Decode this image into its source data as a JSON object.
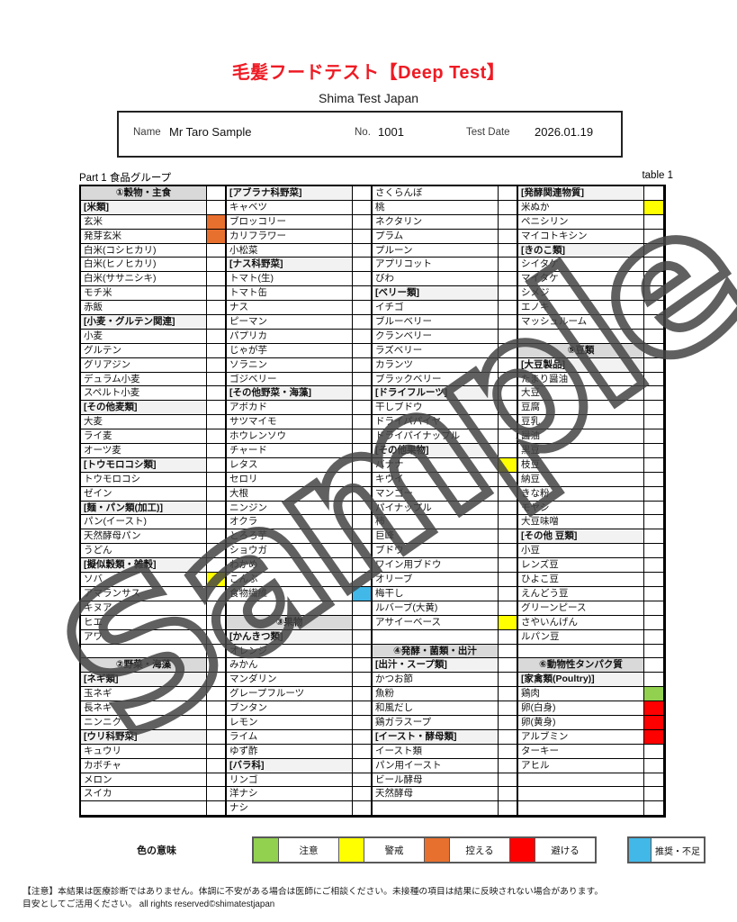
{
  "header": {
    "title": "毛髪フードテスト【Deep Test】",
    "subtitle": "Shima Test Japan"
  },
  "info": {
    "name_label": "Name",
    "name_value": "Mr  Taro Sample",
    "no_label": "No.",
    "no_value": "1001",
    "date_label": "Test Date",
    "date_value": "2026.01.19"
  },
  "table_meta": {
    "part_label": "Part 1  食品グループ",
    "table_label": "table 1"
  },
  "watermark": "Sample",
  "table": {
    "columns": [
      [
        [
          "①穀物・主食",
          "sec",
          ""
        ],
        [
          "[米類]",
          "sub",
          ""
        ],
        [
          "玄米",
          "i",
          "orange"
        ],
        [
          "発芽玄米",
          "i",
          "orange"
        ],
        [
          "白米(コシヒカリ)",
          "i",
          ""
        ],
        [
          "白米(ヒノヒカリ)",
          "i",
          ""
        ],
        [
          "白米(ササニシキ)",
          "i",
          ""
        ],
        [
          "モチ米",
          "i",
          ""
        ],
        [
          "赤飯",
          "i",
          ""
        ],
        [
          "[小麦・グルテン関連]",
          "sub",
          ""
        ],
        [
          "小麦",
          "i",
          ""
        ],
        [
          "グルテン",
          "i",
          ""
        ],
        [
          "グリアジン",
          "i",
          ""
        ],
        [
          "デュラム小麦",
          "i",
          ""
        ],
        [
          "スペルト小麦",
          "i",
          ""
        ],
        [
          "[その他麦類]",
          "sub",
          ""
        ],
        [
          "大麦",
          "i",
          ""
        ],
        [
          "ライ麦",
          "i",
          ""
        ],
        [
          "オーツ麦",
          "i",
          ""
        ],
        [
          "[トウモロコシ類]",
          "sub",
          ""
        ],
        [
          "トウモロコシ",
          "i",
          ""
        ],
        [
          "ゼイン",
          "i",
          ""
        ],
        [
          "[麺・パン類(加工)]",
          "sub",
          ""
        ],
        [
          "パン(イースト)",
          "i",
          ""
        ],
        [
          "天然酵母パン",
          "i",
          ""
        ],
        [
          "うどん",
          "i",
          ""
        ],
        [
          "[擬似穀類・雑穀]",
          "sub",
          ""
        ],
        [
          "ソバ",
          "i",
          "yellow"
        ],
        [
          "アマランサス",
          "i",
          ""
        ],
        [
          "キヌア",
          "i",
          ""
        ],
        [
          "ヒエ",
          "i",
          ""
        ],
        [
          "アワ",
          "i",
          ""
        ],
        [
          "",
          "e",
          ""
        ],
        [
          "②野菜・海藻",
          "sec",
          ""
        ],
        [
          "[ネギ類]",
          "sub",
          ""
        ],
        [
          "玉ネギ",
          "i",
          ""
        ],
        [
          "長ネギ",
          "i",
          ""
        ],
        [
          "ニンニク",
          "i",
          ""
        ],
        [
          "[ウリ科野菜]",
          "sub",
          ""
        ],
        [
          "キュウリ",
          "i",
          ""
        ],
        [
          "カボチャ",
          "i",
          ""
        ],
        [
          "メロン",
          "i",
          ""
        ],
        [
          "スイカ",
          "i",
          ""
        ],
        [
          "",
          "e",
          ""
        ]
      ],
      [
        [
          "[アブラナ科野菜]",
          "sub",
          ""
        ],
        [
          "キャベツ",
          "i",
          ""
        ],
        [
          "ブロッコリー",
          "i",
          ""
        ],
        [
          "カリフラワー",
          "i",
          ""
        ],
        [
          "小松菜",
          "i",
          ""
        ],
        [
          "[ナス科野菜]",
          "sub",
          ""
        ],
        [
          "トマト(生)",
          "i",
          ""
        ],
        [
          "トマト缶",
          "i",
          ""
        ],
        [
          "ナス",
          "i",
          ""
        ],
        [
          "ピーマン",
          "i",
          ""
        ],
        [
          "パプリカ",
          "i",
          ""
        ],
        [
          "じゃが芋",
          "i",
          ""
        ],
        [
          "ソラニン",
          "i",
          ""
        ],
        [
          "ゴジベリー",
          "i",
          ""
        ],
        [
          "[その他野菜・海藻]",
          "sub",
          ""
        ],
        [
          "アボカド",
          "i",
          ""
        ],
        [
          "サツマイモ",
          "i",
          ""
        ],
        [
          "ホウレンソウ",
          "i",
          ""
        ],
        [
          "チャード",
          "i",
          ""
        ],
        [
          "レタス",
          "i",
          ""
        ],
        [
          "セロリ",
          "i",
          ""
        ],
        [
          "大根",
          "i",
          ""
        ],
        [
          "ニンジン",
          "i",
          ""
        ],
        [
          "オクラ",
          "i",
          ""
        ],
        [
          "とろろ芋",
          "i",
          ""
        ],
        [
          "ショウガ",
          "i",
          ""
        ],
        [
          "わかめ",
          "i",
          ""
        ],
        [
          "こんぶ",
          "i",
          ""
        ],
        [
          "食物繊維",
          "i",
          "blue"
        ],
        [
          "",
          "e",
          ""
        ],
        [
          "③果物",
          "sec",
          ""
        ],
        [
          "[かんきつ類]",
          "sub",
          ""
        ],
        [
          "オレンジ",
          "i",
          ""
        ],
        [
          "みかん",
          "i",
          ""
        ],
        [
          "マンダリン",
          "i",
          ""
        ],
        [
          "グレープフルーツ",
          "i",
          ""
        ],
        [
          "ブンタン",
          "i",
          ""
        ],
        [
          "レモン",
          "i",
          ""
        ],
        [
          "ライム",
          "i",
          ""
        ],
        [
          "ゆず酢",
          "i",
          ""
        ],
        [
          "[バラ科]",
          "sub",
          ""
        ],
        [
          "リンゴ",
          "i",
          ""
        ],
        [
          "洋ナシ",
          "i",
          ""
        ],
        [
          "ナシ",
          "i",
          ""
        ]
      ],
      [
        [
          "さくらんぼ",
          "i",
          ""
        ],
        [
          "桃",
          "i",
          ""
        ],
        [
          "ネクタリン",
          "i",
          ""
        ],
        [
          "プラム",
          "i",
          ""
        ],
        [
          "プルーン",
          "i",
          ""
        ],
        [
          "アプリコット",
          "i",
          ""
        ],
        [
          "びわ",
          "i",
          ""
        ],
        [
          "[ベリー類]",
          "sub",
          ""
        ],
        [
          "イチゴ",
          "i",
          ""
        ],
        [
          "ブルーベリー",
          "i",
          ""
        ],
        [
          "クランベリー",
          "i",
          ""
        ],
        [
          "ラズベリー",
          "i",
          ""
        ],
        [
          "カランツ",
          "i",
          ""
        ],
        [
          "ブラックベリー",
          "i",
          ""
        ],
        [
          "[ドライフルーツ]",
          "sub",
          ""
        ],
        [
          "干しブドウ",
          "i",
          ""
        ],
        [
          "ドライパパイヤ",
          "i",
          ""
        ],
        [
          "ドライパイナップル",
          "i",
          ""
        ],
        [
          "[その他果物]",
          "sub",
          ""
        ],
        [
          "バナナ",
          "i",
          "yellow"
        ],
        [
          "キウイ",
          "i",
          ""
        ],
        [
          "マンゴー",
          "i",
          ""
        ],
        [
          "パイナップル",
          "i",
          ""
        ],
        [
          "柿",
          "i",
          ""
        ],
        [
          "巨峰",
          "i",
          ""
        ],
        [
          "ブドウ",
          "i",
          ""
        ],
        [
          "ワイン用ブドウ",
          "i",
          ""
        ],
        [
          "オリーブ",
          "i",
          ""
        ],
        [
          "梅干し",
          "i",
          ""
        ],
        [
          "ルバーブ(大黄)",
          "i",
          ""
        ],
        [
          "アサイーベース",
          "i",
          "yellow"
        ],
        [
          "",
          "e",
          ""
        ],
        [
          "④発酵・菌類・出汁",
          "sec",
          ""
        ],
        [
          "[出汁・スープ類]",
          "sub",
          ""
        ],
        [
          "かつお節",
          "i",
          ""
        ],
        [
          "魚粉",
          "i",
          ""
        ],
        [
          "和風だし",
          "i",
          ""
        ],
        [
          "鶏ガラスープ",
          "i",
          ""
        ],
        [
          "[イースト・酵母類]",
          "sub",
          ""
        ],
        [
          "イースト類",
          "i",
          ""
        ],
        [
          "パン用イースト",
          "i",
          ""
        ],
        [
          "ビール酵母",
          "i",
          ""
        ],
        [
          "天然酵母",
          "i",
          ""
        ],
        [
          "",
          "e",
          ""
        ]
      ],
      [
        [
          "[発酵関連物質]",
          "sub",
          ""
        ],
        [
          "米ぬか",
          "i",
          "yellow"
        ],
        [
          "ペニシリン",
          "i",
          ""
        ],
        [
          "マイコトキシン",
          "i",
          ""
        ],
        [
          "[きのこ類]",
          "sub",
          ""
        ],
        [
          "シイタケ",
          "i",
          ""
        ],
        [
          "マイタケ",
          "i",
          ""
        ],
        [
          "シメジ",
          "i",
          ""
        ],
        [
          "エノキ",
          "i",
          ""
        ],
        [
          "マッシュルーム",
          "i",
          ""
        ],
        [
          "",
          "e",
          ""
        ],
        [
          "⑤豆類",
          "sec",
          ""
        ],
        [
          "[大豆製品]",
          "sub",
          ""
        ],
        [
          "たまり醤油",
          "i",
          ""
        ],
        [
          "大豆",
          "i",
          ""
        ],
        [
          "豆腐",
          "i",
          ""
        ],
        [
          "豆乳",
          "i",
          ""
        ],
        [
          "醤油",
          "i",
          ""
        ],
        [
          "黒豆",
          "i",
          ""
        ],
        [
          "枝豆",
          "i",
          ""
        ],
        [
          "納豆",
          "i",
          ""
        ],
        [
          "きな粉",
          "i",
          ""
        ],
        [
          "モヤシ",
          "i",
          ""
        ],
        [
          "大豆味噌",
          "i",
          ""
        ],
        [
          "[その他 豆類]",
          "sub",
          ""
        ],
        [
          "小豆",
          "i",
          ""
        ],
        [
          "レンズ豆",
          "i",
          ""
        ],
        [
          "ひよこ豆",
          "i",
          ""
        ],
        [
          "えんどう豆",
          "i",
          ""
        ],
        [
          "グリーンピース",
          "i",
          ""
        ],
        [
          "さやいんげん",
          "i",
          ""
        ],
        [
          "ルパン豆",
          "i",
          ""
        ],
        [
          "",
          "e",
          ""
        ],
        [
          "⑥動物性タンパク質",
          "sec",
          ""
        ],
        [
          "[家禽類(Poultry)]",
          "sub",
          ""
        ],
        [
          "鶏肉",
          "i",
          "green"
        ],
        [
          "卵(白身)",
          "i",
          "red"
        ],
        [
          "卵(黄身)",
          "i",
          "red"
        ],
        [
          "アルブミン",
          "i",
          "red"
        ],
        [
          "ターキー",
          "i",
          ""
        ],
        [
          "アヒル",
          "i",
          ""
        ],
        [
          "",
          "e",
          ""
        ],
        [
          "",
          "e",
          ""
        ],
        [
          "",
          "e",
          ""
        ]
      ]
    ]
  },
  "legend": {
    "title": "色の意味",
    "items": [
      {
        "key": "green",
        "hex": "#92d050",
        "label": "注意"
      },
      {
        "key": "yellow",
        "hex": "#ffff00",
        "label": "警戒"
      },
      {
        "key": "orange",
        "hex": "#e8702e",
        "label": "控える"
      },
      {
        "key": "red",
        "hex": "#ff0000",
        "label": "避ける"
      }
    ],
    "extra": {
      "key": "blue",
      "hex": "#41b8e8",
      "label": "推奨・不足"
    }
  },
  "footer": {
    "line1": "【注意】本結果は医療診断ではありません。体調に不安がある場合は医師にご相談ください。未接種の項目は結果に反映されない場合があります。",
    "line2": "目安としてご活用ください。 all rights reserved©shimatestjapan"
  }
}
